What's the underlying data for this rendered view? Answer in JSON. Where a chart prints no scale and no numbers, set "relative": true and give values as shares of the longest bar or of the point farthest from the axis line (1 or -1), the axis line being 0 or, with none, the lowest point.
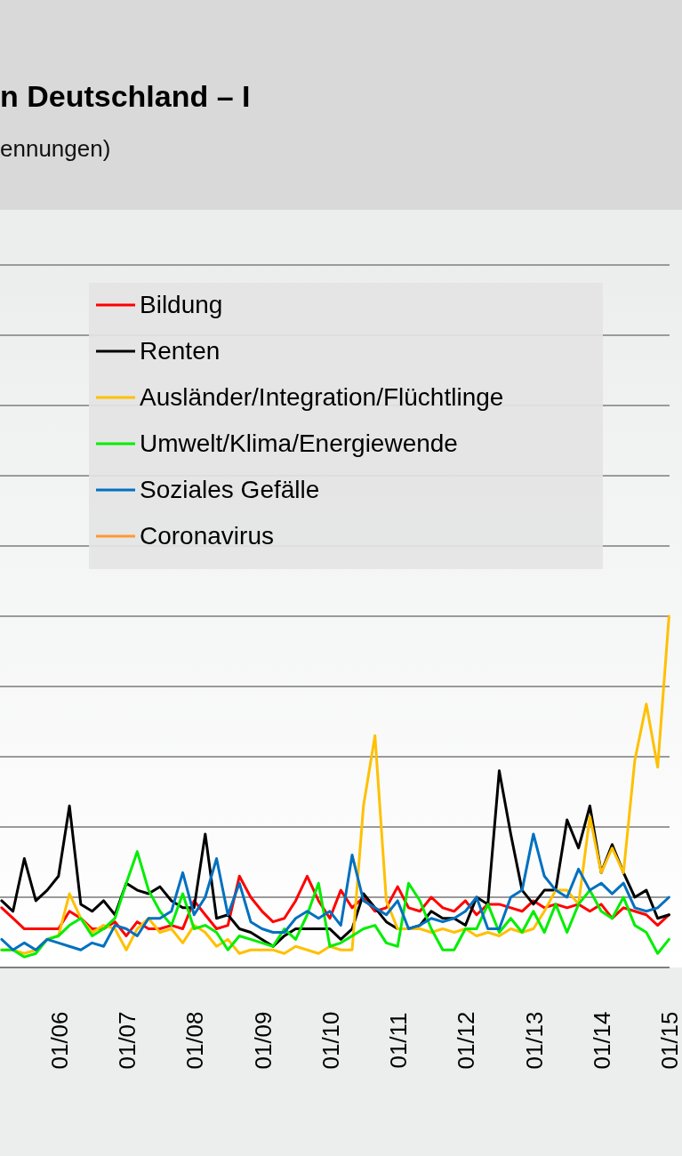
{
  "chart_data": {
    "type": "line",
    "title": "n Deutschland – I",
    "subtitle": "ennungen)",
    "relative": true,
    "grid": true,
    "legend": "top",
    "line_style": "solid",
    "xlim": [
      "2005-02-20",
      "2015-01-04"
    ],
    "xticks": [
      {
        "value": "2006-01-01",
        "label": "01/06"
      },
      {
        "value": "2007-01-01",
        "label": "01/07"
      },
      {
        "value": "2008-01-01",
        "label": "01/08"
      },
      {
        "value": "2009-01-01",
        "label": "01/09"
      },
      {
        "value": "2010-01-01",
        "label": "01/10"
      },
      {
        "value": "2011-01-01",
        "label": "01/11"
      },
      {
        "value": "2012-01-01",
        "label": "01/12"
      },
      {
        "value": "2013-01-01",
        "label": "01/13"
      },
      {
        "value": "2014-01-01",
        "label": "01/14"
      },
      {
        "value": "2015-01-01",
        "label": "01/15"
      }
    ],
    "x": [
      "2005-03",
      "2005-05",
      "2005-07",
      "2005-09",
      "2005-11",
      "2006-01",
      "2006-03",
      "2006-05",
      "2006-07",
      "2006-09",
      "2006-11",
      "2007-01",
      "2007-03",
      "2007-05",
      "2007-07",
      "2007-09",
      "2007-11",
      "2008-01",
      "2008-03",
      "2008-05",
      "2008-07",
      "2008-09",
      "2008-11",
      "2009-01",
      "2009-03",
      "2009-05",
      "2009-07",
      "2009-09",
      "2009-11",
      "2010-01",
      "2010-03",
      "2010-05",
      "2010-07",
      "2010-09",
      "2010-11",
      "2011-01",
      "2011-03",
      "2011-05",
      "2011-07",
      "2011-09",
      "2011-11",
      "2012-01",
      "2012-03",
      "2012-05",
      "2012-07",
      "2012-09",
      "2012-11",
      "2013-01",
      "2013-03",
      "2013-05",
      "2013-07",
      "2013-09",
      "2013-11",
      "2014-01",
      "2014-03",
      "2014-05",
      "2014-07",
      "2014-09",
      "2014-11",
      "2015-01"
    ],
    "series": [
      {
        "name": "Bildung",
        "color": "#ff0000",
        "values": [
          0.17,
          0.14,
          0.11,
          0.11,
          0.11,
          0.11,
          0.16,
          0.14,
          0.11,
          0.11,
          0.13,
          0.09,
          0.13,
          0.11,
          0.11,
          0.12,
          0.11,
          0.19,
          0.15,
          0.11,
          0.12,
          0.26,
          0.2,
          0.16,
          0.13,
          0.14,
          0.19,
          0.26,
          0.19,
          0.14,
          0.22,
          0.17,
          0.2,
          0.16,
          0.17,
          0.23,
          0.17,
          0.16,
          0.2,
          0.17,
          0.16,
          0.19,
          0.15,
          0.18,
          0.18,
          0.17,
          0.16,
          0.19,
          0.17,
          0.18,
          0.17,
          0.18,
          0.16,
          0.18,
          0.14,
          0.17,
          0.16,
          0.15,
          0.12,
          0.15
        ]
      },
      {
        "name": "Renten",
        "color": "#000000",
        "values": [
          0.19,
          0.16,
          0.31,
          0.19,
          0.22,
          0.26,
          0.46,
          0.18,
          0.16,
          0.19,
          0.15,
          0.24,
          0.22,
          0.21,
          0.23,
          0.19,
          0.17,
          0.17,
          0.38,
          0.14,
          0.15,
          0.11,
          0.1,
          0.08,
          0.06,
          0.09,
          0.11,
          0.11,
          0.11,
          0.11,
          0.08,
          0.11,
          0.21,
          0.17,
          0.13,
          0.11,
          0.11,
          0.12,
          0.16,
          0.14,
          0.14,
          0.12,
          0.2,
          0.18,
          0.56,
          0.38,
          0.22,
          0.18,
          0.22,
          0.22,
          0.42,
          0.34,
          0.46,
          0.27,
          0.35,
          0.27,
          0.2,
          0.22,
          0.14,
          0.15
        ]
      },
      {
        "name": "Ausländer/Integration/Flüchtlinge",
        "color": "#ffc000",
        "values": [
          0.05,
          0.05,
          0.04,
          0.05,
          0.08,
          0.09,
          0.21,
          0.14,
          0.1,
          0.12,
          0.11,
          0.05,
          0.11,
          0.14,
          0.1,
          0.11,
          0.07,
          0.12,
          0.1,
          0.06,
          0.08,
          0.04,
          0.05,
          0.05,
          0.05,
          0.04,
          0.06,
          0.05,
          0.04,
          0.06,
          0.05,
          0.05,
          0.46,
          0.66,
          0.19,
          0.11,
          0.11,
          0.11,
          0.1,
          0.11,
          0.1,
          0.11,
          0.09,
          0.1,
          0.09,
          0.11,
          0.1,
          0.11,
          0.16,
          0.22,
          0.22,
          0.18,
          0.43,
          0.27,
          0.34,
          0.27,
          0.59,
          0.75,
          0.57,
          1
        ]
      },
      {
        "name": "Umwelt/Klima/Energiewende",
        "color": "#00ee00",
        "values": [
          0.05,
          0.05,
          0.03,
          0.04,
          0.08,
          0.09,
          0.12,
          0.14,
          0.09,
          0.11,
          0.14,
          0.24,
          0.33,
          0.22,
          0.16,
          0.12,
          0.21,
          0.11,
          0.12,
          0.1,
          0.05,
          0.09,
          0.08,
          0.07,
          0.06,
          0.11,
          0.08,
          0.15,
          0.24,
          0.06,
          0.07,
          0.09,
          0.11,
          0.12,
          0.07,
          0.06,
          0.24,
          0.19,
          0.11,
          0.05,
          0.05,
          0.11,
          0.11,
          0.18,
          0.1,
          0.14,
          0.1,
          0.16,
          0.1,
          0.18,
          0.1,
          0.18,
          0.22,
          0.16,
          0.14,
          0.2,
          0.12,
          0.1,
          0.04,
          0.08
        ]
      },
      {
        "name": "Soziales Gefälle",
        "color": "#0070c0",
        "values": [
          0.08,
          0.05,
          0.07,
          0.05,
          0.08,
          0.07,
          0.06,
          0.05,
          0.07,
          0.06,
          0.12,
          0.11,
          0.09,
          0.14,
          0.14,
          0.16,
          0.27,
          0.15,
          0.2,
          0.31,
          0.15,
          0.24,
          0.13,
          0.11,
          0.1,
          0.1,
          0.14,
          0.16,
          0.14,
          0.16,
          0.12,
          0.32,
          0.19,
          0.17,
          0.15,
          0.19,
          0.11,
          0.12,
          0.14,
          0.13,
          0.14,
          0.16,
          0.2,
          0.11,
          0.11,
          0.2,
          0.22,
          0.38,
          0.26,
          0.22,
          0.2,
          0.28,
          0.22,
          0.24,
          0.21,
          0.24,
          0.17,
          0.16,
          0.17,
          0.2
        ]
      },
      {
        "name": "Coronavirus",
        "color": "#ff9933",
        "values": [
          null,
          null,
          null,
          null,
          null,
          null,
          null,
          null,
          null,
          null,
          null,
          null,
          null,
          null,
          null,
          null,
          null,
          null,
          null,
          null,
          null,
          null,
          null,
          null,
          null,
          null,
          null,
          null,
          null,
          null,
          null,
          null,
          null,
          null,
          null,
          null,
          null,
          null,
          null,
          null,
          null,
          null,
          null,
          null,
          null,
          null,
          null,
          null,
          null,
          null,
          null,
          null,
          null,
          null,
          null,
          null,
          null,
          null,
          null,
          null
        ]
      }
    ]
  }
}
